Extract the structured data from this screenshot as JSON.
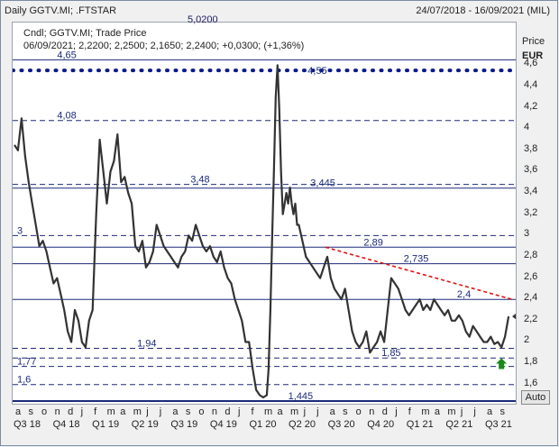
{
  "header": {
    "title": "Daily GGTV.MI; .FTSTAR",
    "range": "24/07/2018 - 16/09/2021 (MIL)"
  },
  "legend": {
    "line1": "Cndl; GGTV.MI; Trade Price",
    "line2": "06/09/2021; 2,2200; 2,2500; 2,1650; 2,2400; +0,0300; (+1,36%)",
    "overflow_label": "5,0200"
  },
  "axis": {
    "y_title": "Price",
    "y_unit": "EUR",
    "auto_button": "Auto"
  },
  "chart_data": {
    "type": "line",
    "ylim": [
      1.42,
      5.0
    ],
    "y_ticks": [
      {
        "v": 4.6,
        "t": "4,6"
      },
      {
        "v": 4.4,
        "t": "4,4"
      },
      {
        "v": 4.2,
        "t": "4,2"
      },
      {
        "v": 4.0,
        "t": "4"
      },
      {
        "v": 3.8,
        "t": "3,8"
      },
      {
        "v": 3.6,
        "t": "3,6"
      },
      {
        "v": 3.4,
        "t": "3,4"
      },
      {
        "v": 3.2,
        "t": "3,2"
      },
      {
        "v": 3.0,
        "t": "3"
      },
      {
        "v": 2.8,
        "t": "2,8"
      },
      {
        "v": 2.6,
        "t": "2,6"
      },
      {
        "v": 2.4,
        "t": "2,4"
      },
      {
        "v": 2.2,
        "t": "2,2"
      },
      {
        "v": 2.0,
        "t": "2"
      },
      {
        "v": 1.8,
        "t": "1,8"
      },
      {
        "v": 1.6,
        "t": "1,6"
      }
    ],
    "month_labels": [
      "a",
      "s",
      "o",
      "n",
      "d",
      "j",
      "f",
      "m",
      "a",
      "m",
      "j",
      "j",
      "a",
      "s",
      "o",
      "n",
      "d",
      "j",
      "f",
      "m",
      "a",
      "m",
      "j",
      "j",
      "a",
      "s",
      "o",
      "n",
      "d",
      "j",
      "f",
      "m",
      "a",
      "m",
      "j",
      "j",
      "a",
      "s"
    ],
    "quarter_labels": [
      "Q3 18",
      "Q4 18",
      "Q1 19",
      "Q2 19",
      "Q3 19",
      "Q4 19",
      "Q1 20",
      "Q2 20",
      "Q3 20",
      "Q4 20",
      "Q1 21",
      "Q2 21",
      "Q3 21"
    ],
    "h_lines": [
      {
        "v": 4.65,
        "label": "4,65",
        "style": "solid",
        "label_day": 45
      },
      {
        "v": 4.08,
        "label": "4,08",
        "style": "dashed",
        "label_day": 45
      },
      {
        "v": 3.48,
        "label": "3,48",
        "style": "dashed",
        "label_day": 195
      },
      {
        "v": 3.445,
        "label": "3,445",
        "style": "solid",
        "label_day": 330
      },
      {
        "v": 3.0,
        "label": "3",
        "style": "dashed",
        "label_day": 0
      },
      {
        "v": 2.89,
        "label": "2,89",
        "style": "solid",
        "label_day": 390
      },
      {
        "v": 2.735,
        "label": "2,735",
        "style": "solid",
        "label_day": 435
      },
      {
        "v": 2.4,
        "label": "2,4",
        "style": "solid",
        "label_day": 495
      },
      {
        "v": 1.94,
        "label": "1,94",
        "style": "dashed",
        "label_day": 135
      },
      {
        "v": 1.85,
        "label": "1,85",
        "style": "dashed",
        "label_day": 410
      },
      {
        "v": 1.77,
        "label": "1,77",
        "style": "dashed",
        "label_day": 0
      },
      {
        "v": 1.6,
        "label": "1,6",
        "style": "dashed",
        "label_day": 0
      },
      {
        "v": 1.445,
        "label": "1,445",
        "style": "solid",
        "label_day": 305
      }
    ],
    "dotted_level": 4.55,
    "dotted_label": "4,55",
    "trendline": {
      "x": [
        350,
        560
      ],
      "y": [
        2.89,
        2.4
      ]
    },
    "series": [
      {
        "x": [
          0,
          4,
          8,
          12,
          16,
          20,
          24,
          28,
          32,
          36,
          40,
          44,
          48,
          52,
          56,
          60,
          64,
          68,
          72,
          76,
          80,
          84,
          88,
          92,
          96,
          100,
          104,
          108,
          112,
          116,
          120,
          124,
          128,
          132,
          136,
          140,
          144,
          148,
          152,
          156,
          160,
          164,
          168,
          172,
          176,
          180,
          184,
          188,
          192,
          196,
          200,
          204,
          208,
          212,
          216,
          220,
          224,
          228,
          232,
          236,
          240,
          244,
          248,
          252,
          256,
          260,
          264,
          268,
          272,
          276,
          280,
          284,
          286,
          288,
          290,
          292,
          294,
          296,
          298,
          300,
          302,
          304,
          306,
          308,
          310,
          312,
          314,
          316,
          318,
          320,
          324,
          328,
          332,
          336,
          340,
          344,
          348,
          352,
          356,
          360,
          364,
          368,
          372,
          376,
          380,
          384,
          388,
          392,
          396,
          400,
          404,
          408,
          412,
          416,
          420,
          424,
          428,
          432,
          436,
          440,
          444,
          448,
          452,
          456,
          460,
          464,
          468,
          472,
          476,
          480,
          484,
          488,
          492,
          496,
          500,
          504,
          508,
          512,
          516,
          520,
          524,
          528,
          532,
          536,
          540,
          544,
          548,
          552,
          556
        ],
        "y": [
          3.85,
          3.8,
          4.1,
          3.75,
          3.5,
          3.3,
          3.1,
          2.9,
          2.95,
          2.85,
          2.7,
          2.55,
          2.6,
          2.45,
          2.3,
          2.1,
          2.0,
          2.3,
          2.2,
          2.0,
          1.95,
          2.2,
          2.3,
          3.2,
          3.9,
          3.6,
          3.3,
          3.6,
          3.7,
          3.95,
          3.5,
          3.55,
          3.4,
          3.3,
          2.9,
          2.85,
          2.95,
          2.7,
          2.75,
          2.85,
          3.1,
          3.0,
          2.9,
          2.85,
          2.8,
          2.75,
          2.7,
          2.8,
          2.85,
          3.0,
          2.95,
          3.1,
          3.0,
          2.9,
          2.85,
          2.9,
          2.8,
          2.75,
          2.85,
          2.7,
          2.6,
          2.55,
          2.4,
          2.3,
          2.2,
          2.0,
          2.0,
          1.75,
          1.55,
          1.5,
          1.48,
          1.5,
          1.75,
          2.3,
          3.0,
          3.6,
          4.3,
          4.6,
          4.2,
          3.6,
          3.2,
          3.3,
          3.4,
          3.3,
          3.45,
          3.3,
          3.2,
          3.3,
          3.1,
          3.1,
          2.95,
          2.8,
          2.75,
          2.7,
          2.65,
          2.6,
          2.7,
          2.8,
          2.6,
          2.5,
          2.45,
          2.4,
          2.5,
          2.3,
          2.1,
          2.0,
          1.95,
          2.0,
          2.1,
          1.9,
          1.95,
          2.0,
          2.1,
          2.0,
          2.3,
          2.6,
          2.55,
          2.5,
          2.4,
          2.3,
          2.25,
          2.3,
          2.35,
          2.4,
          2.3,
          2.35,
          2.3,
          2.4,
          2.35,
          2.3,
          2.25,
          2.3,
          2.2,
          2.2,
          2.25,
          2.2,
          2.1,
          2.05,
          2.15,
          2.1,
          2.05,
          2.0,
          2.0,
          2.05,
          1.98,
          2.0,
          1.95,
          2.05,
          2.24
        ]
      }
    ]
  }
}
